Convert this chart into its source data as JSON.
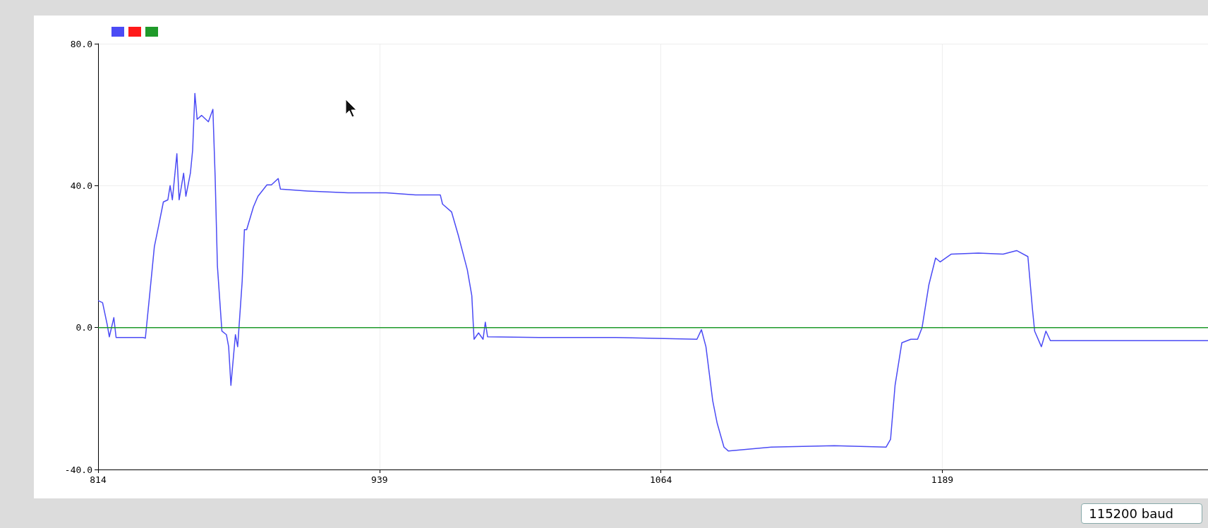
{
  "chart_data": {
    "type": "line",
    "xlim": [
      814,
      1307
    ],
    "ylim": [
      -40,
      80
    ],
    "xticks": [
      814,
      939,
      1064,
      1189
    ],
    "yticks": [
      {
        "value": -40,
        "label": "-40.0"
      },
      {
        "value": 0,
        "label": "0.0"
      },
      {
        "value": 40,
        "label": "40.0"
      },
      {
        "value": 80,
        "label": "80.0"
      }
    ],
    "grid": true,
    "marker": "none",
    "line_style": "solid",
    "annotations": [
      "115200 baud"
    ],
    "series": [
      {
        "color": "#4b4bf5",
        "x": [
          814,
          816,
          818,
          819,
          821,
          822,
          834,
          835,
          837,
          839,
          841,
          843,
          845,
          846,
          847,
          849,
          850,
          852,
          853,
          855,
          856,
          857,
          858,
          860,
          863,
          865,
          866,
          867,
          869,
          871,
          872,
          873,
          875,
          876,
          878,
          879,
          880,
          883,
          885,
          889,
          891,
          894,
          895,
          907,
          925,
          942,
          955,
          966,
          967,
          971,
          974,
          978,
          980,
          981,
          983,
          985,
          986,
          987,
          1010,
          1044,
          1080,
          1082,
          1084,
          1087,
          1089,
          1092,
          1094,
          1113,
          1141,
          1164,
          1166,
          1168,
          1171,
          1175,
          1178,
          1180,
          1183,
          1186,
          1188,
          1193,
          1205,
          1216,
          1222,
          1227,
          1229,
          1230,
          1233,
          1235,
          1237,
          1307
        ],
        "values": [
          7.6,
          7,
          1,
          -2.6,
          2.8,
          -2.8,
          -2.8,
          -3,
          9.8,
          22.8,
          29,
          35.4,
          36,
          40,
          36,
          49,
          36,
          43.5,
          37,
          43.5,
          50,
          66,
          58.7,
          59.8,
          58,
          61.5,
          42.4,
          17.4,
          -1,
          -2,
          -5.4,
          -16.3,
          -2,
          -5.4,
          13,
          27.6,
          27.6,
          34,
          37,
          40.2,
          40.2,
          42,
          39,
          38.5,
          38,
          38,
          37.4,
          37.4,
          34.8,
          32.6,
          26,
          16.3,
          9,
          -3.3,
          -1.5,
          -3.3,
          1.5,
          -2.6,
          -2.8,
          -2.8,
          -3.3,
          -0.6,
          -5.4,
          -20.6,
          -27,
          -33.7,
          -34.8,
          -33.7,
          -33.3,
          -33.7,
          -31.5,
          -16.3,
          -4.3,
          -3.3,
          -3.3,
          0,
          12,
          19.6,
          18.5,
          20.7,
          21,
          20.7,
          21.7,
          20,
          5.4,
          -1,
          -5.4,
          -1,
          -3.7,
          -3.7
        ]
      },
      {
        "color": "#ff1a1a"
      },
      {
        "color": "#1f9a2a",
        "x": [
          814,
          1307
        ],
        "values": [
          0,
          0
        ]
      }
    ]
  }
}
